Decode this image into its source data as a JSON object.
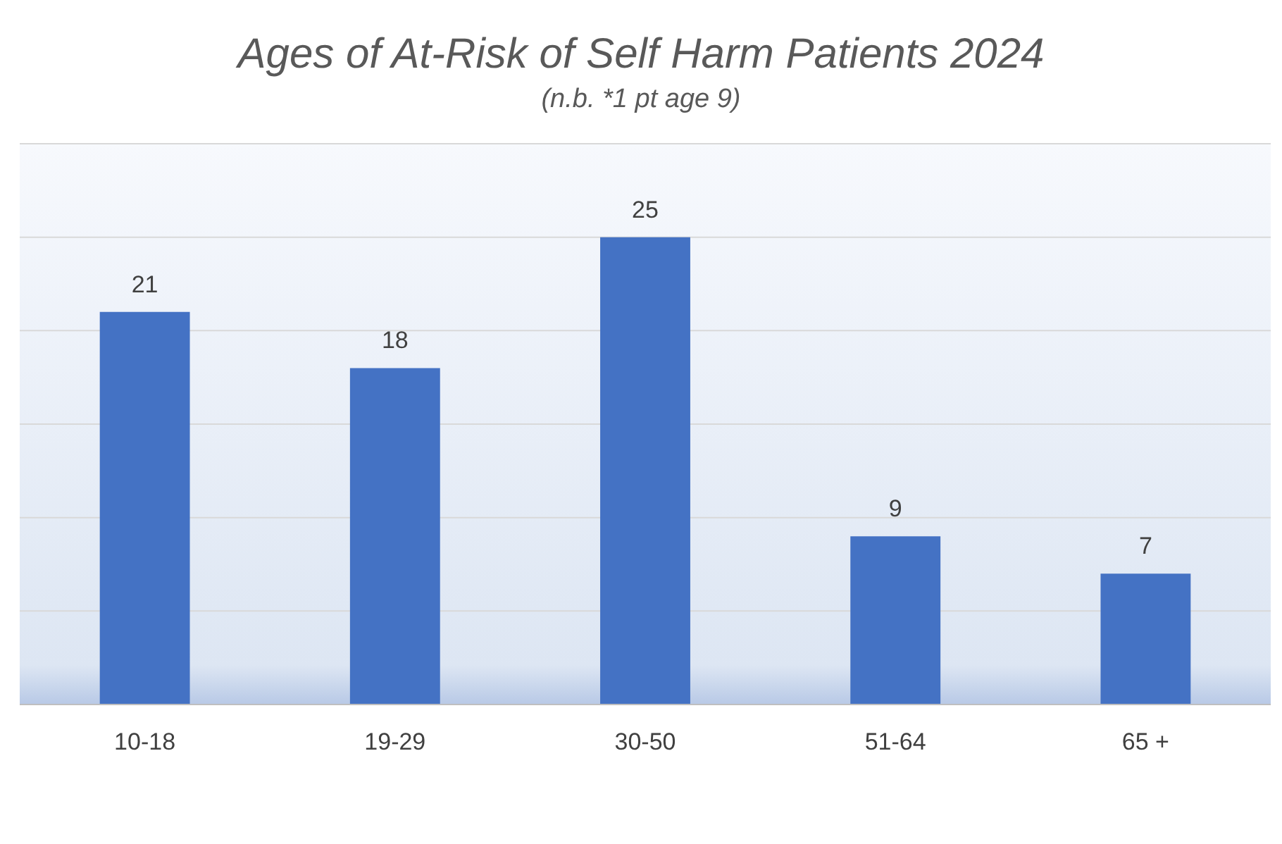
{
  "chart_data": {
    "type": "bar",
    "title": "Ages of At-Risk of Self Harm Patients 2024",
    "subtitle": "(n.b. *1 pt age 9)",
    "categories": [
      "10-18",
      "19-29",
      "30-50",
      "51-64",
      "65 +"
    ],
    "values": [
      21,
      18,
      25,
      9,
      7
    ],
    "color": "#4472c4",
    "ylim": [
      0,
      30
    ],
    "grid": "y",
    "tick_labels": "x",
    "data_labels": true
  }
}
